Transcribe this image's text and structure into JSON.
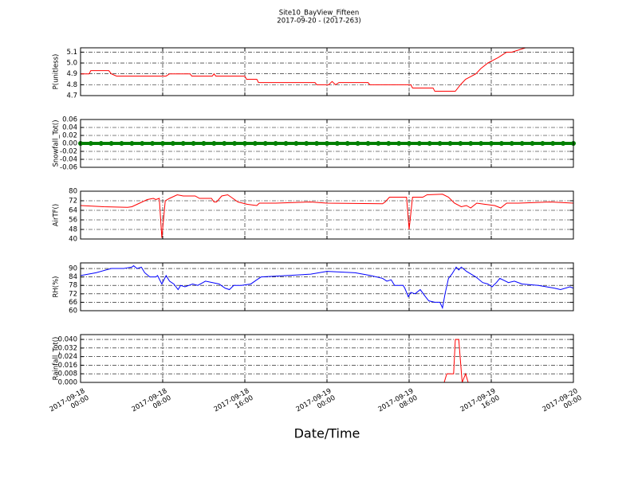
{
  "title": "Site10_BayView_Fifteen",
  "subtitle": "2017-09-20 - (2017-263)",
  "xlabel": "Date/Time",
  "xlim": [
    "2017-09-18 00:00",
    "2017-09-20 00:00"
  ],
  "xticks": [
    {
      "value": "2017-09-18 00:00",
      "label": "2017-09-18\n00:00"
    },
    {
      "value": "2017-09-18 08:00",
      "label": "2017-09-18\n08:00"
    },
    {
      "value": "2017-09-18 16:00",
      "label": "2017-09-18\n16:00"
    },
    {
      "value": "2017-09-19 00:00",
      "label": "2017-09-19\n00:00"
    },
    {
      "value": "2017-09-19 08:00",
      "label": "2017-09-19\n08:00"
    },
    {
      "value": "2017-09-19 16:00",
      "label": "2017-09-19\n16:00"
    },
    {
      "value": "2017-09-20 00:00",
      "label": "2017-09-20\n00:00"
    }
  ],
  "chart_data": [
    {
      "type": "line",
      "ylabel": "P(unitless)",
      "color": "#ff0000",
      "grid": true,
      "ylim": [
        4.7,
        5.14
      ],
      "yticks": [
        4.7,
        4.8,
        4.9,
        {
          "value": 5.0,
          "label": "5.0"
        },
        5.1
      ],
      "x": [
        "2017-09-18 00:00",
        "2017-09-18 00:50",
        "2017-09-18 01:00",
        "2017-09-18 02:45",
        "2017-09-18 03:00",
        "2017-09-18 03:30",
        "2017-09-18 08:20",
        "2017-09-18 08:40",
        "2017-09-18 10:40",
        "2017-09-18 10:50",
        "2017-09-18 12:50",
        "2017-09-18 13:00",
        "2017-09-18 13:10",
        "2017-09-18 16:00",
        "2017-09-18 16:10",
        "2017-09-18 17:10",
        "2017-09-18 17:20",
        "2017-09-18 22:50",
        "2017-09-18 23:00",
        "2017-09-19 00:10",
        "2017-09-19 00:30",
        "2017-09-19 00:50",
        "2017-09-19 01:10",
        "2017-09-19 04:00",
        "2017-09-19 04:10",
        "2017-09-19 08:10",
        "2017-09-19 08:20",
        "2017-09-19 10:20",
        "2017-09-19 10:30",
        "2017-09-19 12:30",
        "2017-09-19 13:00",
        "2017-09-19 13:30",
        "2017-09-19 14:30",
        "2017-09-19 15:00",
        "2017-09-19 15:40",
        "2017-09-19 16:40",
        "2017-09-19 17:10",
        "2017-09-19 17:30",
        "2017-09-19 18:00",
        "2017-09-19 19:20",
        "2017-09-20 00:00"
      ],
      "values": [
        4.9,
        4.9,
        4.93,
        4.93,
        4.9,
        4.88,
        4.88,
        4.9,
        4.9,
        4.88,
        4.88,
        4.9,
        4.88,
        4.88,
        4.85,
        4.85,
        4.82,
        4.82,
        4.8,
        4.8,
        4.83,
        4.8,
        4.82,
        4.82,
        4.8,
        4.8,
        4.77,
        4.77,
        4.74,
        4.74,
        4.8,
        4.85,
        4.9,
        4.95,
        5.0,
        5.05,
        5.08,
        5.1,
        5.1,
        5.14,
        5.14
      ]
    },
    {
      "type": "line",
      "ylabel": "Snowfall_Tot()",
      "color": "#008000",
      "marker": "circle",
      "grid": true,
      "ylim": [
        -0.06,
        0.06
      ],
      "yticks": [
        -0.06,
        -0.04,
        -0.02,
        {
          "value": 0,
          "label": "0.00"
        },
        0.02,
        0.04,
        0.06
      ],
      "x": [
        "2017-09-18 00:00",
        "2017-09-18 01:00",
        "2017-09-18 02:00",
        "2017-09-18 03:00",
        "2017-09-18 04:00",
        "2017-09-18 05:00",
        "2017-09-18 06:00",
        "2017-09-18 07:00",
        "2017-09-18 08:00",
        "2017-09-18 09:00",
        "2017-09-18 10:00",
        "2017-09-18 11:00",
        "2017-09-18 12:00",
        "2017-09-18 13:00",
        "2017-09-18 14:00",
        "2017-09-18 15:00",
        "2017-09-18 16:00",
        "2017-09-18 17:00",
        "2017-09-18 18:00",
        "2017-09-18 19:00",
        "2017-09-18 20:00",
        "2017-09-18 21:00",
        "2017-09-18 22:00",
        "2017-09-18 23:00",
        "2017-09-19 00:00",
        "2017-09-19 01:00",
        "2017-09-19 02:00",
        "2017-09-19 03:00",
        "2017-09-19 04:00",
        "2017-09-19 05:00",
        "2017-09-19 06:00",
        "2017-09-19 07:00",
        "2017-09-19 08:00",
        "2017-09-19 09:00",
        "2017-09-19 10:00",
        "2017-09-19 11:00",
        "2017-09-19 12:00",
        "2017-09-19 13:00",
        "2017-09-19 14:00",
        "2017-09-19 15:00",
        "2017-09-19 16:00",
        "2017-09-19 17:00",
        "2017-09-19 18:00",
        "2017-09-19 19:00",
        "2017-09-19 20:00",
        "2017-09-19 21:00",
        "2017-09-19 22:00",
        "2017-09-19 23:00",
        "2017-09-20 00:00"
      ],
      "values": [
        0,
        0,
        0,
        0,
        0,
        0,
        0,
        0,
        0,
        0,
        0,
        0,
        0,
        0,
        0,
        0,
        0,
        0,
        0,
        0,
        0,
        0,
        0,
        0,
        0,
        0,
        0,
        0,
        0,
        0,
        0,
        0,
        0,
        0,
        0,
        0,
        0,
        0,
        0,
        0,
        0,
        0,
        0,
        0,
        0,
        0,
        0,
        0,
        0
      ]
    },
    {
      "type": "line",
      "ylabel": "AirTF()",
      "color": "#ff0000",
      "grid": true,
      "ylim": [
        40,
        80
      ],
      "yticks": [
        40,
        48,
        56,
        64,
        72,
        80
      ],
      "x": [
        "2017-09-18 00:00",
        "2017-09-18 02:15",
        "2017-09-18 04:35",
        "2017-09-18 05:00",
        "2017-09-18 05:45",
        "2017-09-18 06:30",
        "2017-09-18 07:05",
        "2017-09-18 07:20",
        "2017-09-18 07:40",
        "2017-09-18 07:55",
        "2017-09-18 08:15",
        "2017-09-18 08:40",
        "2017-09-18 09:25",
        "2017-09-18 10:00",
        "2017-09-18 11:10",
        "2017-09-18 11:35",
        "2017-09-18 12:45",
        "2017-09-18 13:00",
        "2017-09-18 13:15",
        "2017-09-18 13:45",
        "2017-09-18 14:20",
        "2017-09-18 14:50",
        "2017-09-18 15:20",
        "2017-09-18 16:15",
        "2017-09-18 17:10",
        "2017-09-18 17:25",
        "2017-09-18 19:00",
        "2017-09-18 22:25",
        "2017-09-19 00:00",
        "2017-09-19 05:25",
        "2017-09-19 05:40",
        "2017-09-19 06:05",
        "2017-09-19 07:45",
        "2017-09-19 08:00",
        "2017-09-19 08:20",
        "2017-09-19 09:20",
        "2017-09-19 09:45",
        "2017-09-19 11:15",
        "2017-09-19 11:50",
        "2017-09-19 12:25",
        "2017-09-19 13:05",
        "2017-09-19 13:35",
        "2017-09-19 14:00",
        "2017-09-19 14:35",
        "2017-09-19 15:25",
        "2017-09-19 16:20",
        "2017-09-19 16:55",
        "2017-09-19 17:30",
        "2017-09-19 18:40",
        "2017-09-19 21:45",
        "2017-09-20 00:00"
      ],
      "values": [
        68,
        67,
        66.5,
        67,
        70,
        73,
        74,
        73,
        74,
        41,
        72,
        74,
        77,
        76,
        76,
        74,
        74,
        71,
        71,
        76,
        77,
        74,
        71,
        69,
        68,
        70,
        70,
        71,
        70,
        69.5,
        71,
        75,
        75,
        48,
        75,
        75,
        77,
        77.5,
        75,
        70,
        67,
        68,
        66,
        70,
        69,
        68,
        66,
        70,
        70,
        71,
        70
      ]
    },
    {
      "type": "line",
      "ylabel": "RH(%)",
      "color": "#0000ff",
      "grid": true,
      "ylim": [
        60,
        94
      ],
      "yticks": [
        60,
        66,
        72,
        78,
        84,
        90
      ],
      "x": [
        "2017-09-18 00:00",
        "2017-09-18 01:30",
        "2017-09-18 03:00",
        "2017-09-18 04:10",
        "2017-09-18 05:00",
        "2017-09-18 05:10",
        "2017-09-18 05:30",
        "2017-09-18 05:55",
        "2017-09-18 06:15",
        "2017-09-18 06:45",
        "2017-09-18 07:20",
        "2017-09-18 07:30",
        "2017-09-18 07:55",
        "2017-09-18 08:20",
        "2017-09-18 08:40",
        "2017-09-18 09:05",
        "2017-09-18 09:30",
        "2017-09-18 09:45",
        "2017-09-18 10:10",
        "2017-09-18 10:55",
        "2017-09-18 11:25",
        "2017-09-18 12:10",
        "2017-09-18 13:30",
        "2017-09-18 14:05",
        "2017-09-18 14:30",
        "2017-09-18 14:55",
        "2017-09-18 15:40",
        "2017-09-18 16:35",
        "2017-09-18 17:10",
        "2017-09-18 17:35",
        "2017-09-18 20:05",
        "2017-09-18 22:25",
        "2017-09-19 00:00",
        "2017-09-19 02:45",
        "2017-09-19 04:15",
        "2017-09-19 05:25",
        "2017-09-19 05:50",
        "2017-09-19 06:15",
        "2017-09-19 06:35",
        "2017-09-19 07:25",
        "2017-09-19 07:35",
        "2017-09-19 07:55",
        "2017-09-19 08:10",
        "2017-09-19 08:35",
        "2017-09-19 09:05",
        "2017-09-19 09:35",
        "2017-09-19 09:55",
        "2017-09-19 10:30",
        "2017-09-19 11:00",
        "2017-09-19 11:15",
        "2017-09-19 11:30",
        "2017-09-19 11:50",
        "2017-09-19 12:10",
        "2017-09-19 12:35",
        "2017-09-19 12:50",
        "2017-09-19 13:05",
        "2017-09-19 13:35",
        "2017-09-19 14:30",
        "2017-09-19 15:10",
        "2017-09-19 15:40",
        "2017-09-19 16:05",
        "2017-09-19 16:30",
        "2017-09-19 16:50",
        "2017-09-19 17:40",
        "2017-09-19 18:15",
        "2017-09-19 19:00",
        "2017-09-19 20:35",
        "2017-09-19 22:10",
        "2017-09-19 22:45",
        "2017-09-19 23:40",
        "2017-09-20 00:00"
      ],
      "values": [
        85,
        87,
        90,
        90,
        91,
        92,
        90,
        91,
        87,
        84,
        84,
        85,
        79,
        85,
        81,
        79,
        75,
        78,
        77,
        79,
        78,
        81,
        79,
        76,
        75,
        78,
        78,
        79,
        82,
        84,
        85,
        86,
        88,
        87,
        85,
        83,
        81,
        82,
        78,
        78,
        76,
        70,
        73,
        72,
        75,
        70,
        67,
        66,
        66,
        62,
        72,
        83,
        86,
        91,
        89,
        91,
        88,
        84,
        80,
        79,
        77,
        80,
        83,
        80,
        81,
        79,
        78,
        76,
        75,
        77,
        76
      ]
    },
    {
      "type": "line",
      "ylabel": "Rainfall_Tot()",
      "color": "#ff0000",
      "grid": true,
      "ylim": [
        0,
        0.0445
      ],
      "yticks": [
        {
          "value": 0,
          "label": "0.000"
        },
        {
          "value": 0.008,
          "label": "0.008"
        },
        {
          "value": 0.016,
          "label": "0.016"
        },
        {
          "value": 0.024,
          "label": "0.024"
        },
        {
          "value": 0.032,
          "label": "0.032"
        },
        {
          "value": 0.04,
          "label": "0.040"
        }
      ],
      "x": [
        "2017-09-18 00:00",
        "2017-09-19 11:25",
        "2017-09-19 11:40",
        "2017-09-19 12:20",
        "2017-09-19 12:30",
        "2017-09-19 12:50",
        "2017-09-19 13:10",
        "2017-09-19 13:30",
        "2017-09-19 13:45",
        "2017-09-20 00:00"
      ],
      "values": [
        0,
        0,
        0.008,
        0.008,
        0.04,
        0.04,
        0,
        0.008,
        0,
        0
      ]
    }
  ]
}
